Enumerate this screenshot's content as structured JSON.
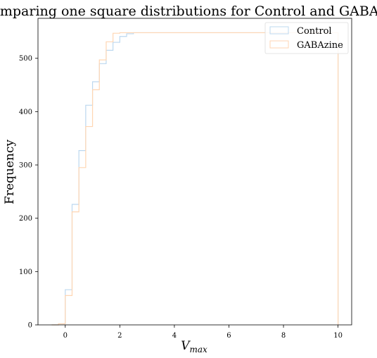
{
  "chart_data": {
    "type": "step",
    "title": "Comparing one square distributions for Control and GABAzine",
    "xlabel": "V",
    "xlabel_sub": "max",
    "ylabel": "Frequency",
    "xlim": [
      -1.0,
      10.5
    ],
    "ylim": [
      0,
      575
    ],
    "xticks": [
      0,
      2,
      4,
      6,
      8,
      10
    ],
    "yticks": [
      0,
      100,
      200,
      300,
      400,
      500
    ],
    "grid": false,
    "legend_position": "top-right",
    "series": [
      {
        "name": "Control",
        "color": "#bcd8ef",
        "edges": [
          -0.5,
          -0.25,
          0.0,
          0.25,
          0.5,
          0.75,
          1.0,
          1.25,
          1.5,
          1.75,
          2.0,
          2.25,
          2.5,
          3.0,
          4.0,
          6.0,
          8.0,
          10.0
        ],
        "values": [
          0,
          2,
          66,
          226,
          327,
          412,
          456,
          490,
          515,
          530,
          541,
          546,
          548,
          548,
          548,
          548,
          548
        ]
      },
      {
        "name": "GABAzine",
        "color": "#ffd6b3",
        "edges": [
          -0.5,
          -0.25,
          0.0,
          0.25,
          0.5,
          0.75,
          1.0,
          1.25,
          1.5,
          1.75,
          2.0,
          2.25,
          2.5,
          3.0,
          4.0,
          6.0,
          8.0,
          10.0
        ],
        "values": [
          0,
          2,
          55,
          212,
          295,
          372,
          441,
          497,
          531,
          547,
          548,
          548,
          548,
          548,
          548,
          548,
          548
        ]
      }
    ]
  }
}
